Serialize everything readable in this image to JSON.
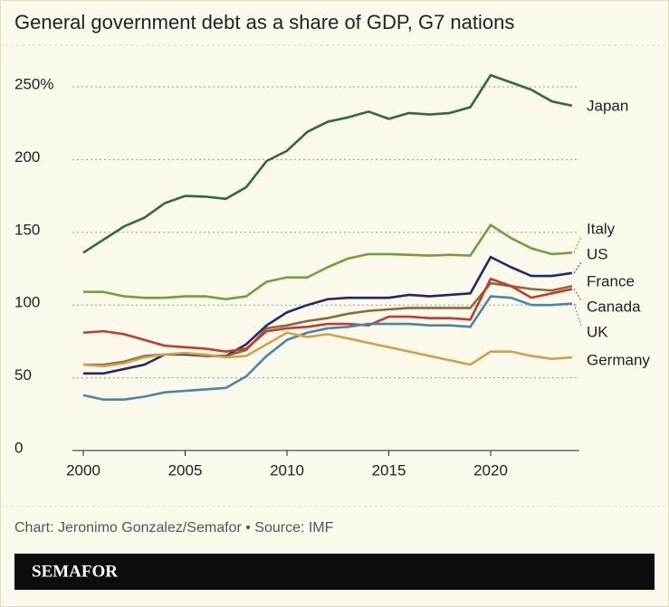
{
  "chart_data": {
    "type": "line",
    "title": "General government debt as a share of GDP, G7 nations",
    "x": [
      2000,
      2001,
      2002,
      2003,
      2004,
      2005,
      2006,
      2007,
      2008,
      2009,
      2010,
      2011,
      2012,
      2013,
      2014,
      2015,
      2016,
      2017,
      2018,
      2019,
      2020,
      2021,
      2022,
      2023,
      2024
    ],
    "xlim": [
      2000,
      2024
    ],
    "xticks": [
      2000,
      2005,
      2010,
      2015,
      2020
    ],
    "ylim": [
      0,
      272
    ],
    "yticks": [
      0,
      50,
      100,
      150,
      200,
      {
        "value": 250,
        "label": "250%"
      }
    ],
    "grid": true,
    "series": [
      {
        "name": "Japan",
        "color": "#2e6b3e",
        "values": [
          136,
          145,
          154,
          160,
          170,
          175,
          174.5,
          173,
          181,
          199,
          206,
          219,
          226,
          229,
          233,
          228,
          232,
          231,
          232,
          236,
          258,
          253,
          248,
          240,
          237
        ]
      },
      {
        "name": "Italy",
        "color": "#6fa23a",
        "values": [
          109,
          109,
          106,
          105,
          105,
          106,
          106,
          104,
          106,
          116,
          119,
          119,
          126,
          132,
          135,
          135,
          134.5,
          134,
          134.5,
          134,
          155,
          146,
          139,
          135,
          136
        ]
      },
      {
        "name": "US",
        "color": "#1f2a6b",
        "values": [
          53,
          53,
          56,
          59,
          66,
          66,
          65,
          65,
          73,
          86,
          95,
          100,
          104,
          105,
          105,
          105,
          107,
          106,
          107,
          108,
          133,
          126,
          120,
          120,
          122
        ]
      },
      {
        "name": "France",
        "color": "#8a6a3a",
        "values": [
          59,
          59,
          61,
          65,
          66,
          67,
          65,
          65,
          69,
          84,
          86,
          89,
          91,
          94,
          96,
          97,
          98,
          98,
          98,
          98,
          115,
          113,
          111,
          110,
          113
        ]
      },
      {
        "name": "Canada",
        "color": "#c43b2a",
        "values": [
          81,
          82,
          80,
          76,
          72,
          71,
          70,
          68,
          70,
          82,
          84,
          85,
          87,
          87,
          86,
          92,
          92,
          91,
          91,
          90,
          118,
          113,
          105,
          108,
          111
        ]
      },
      {
        "name": "UK",
        "color": "#4a86a8",
        "values": [
          38,
          35,
          35,
          37,
          40,
          41,
          42,
          43,
          51,
          65,
          76,
          81,
          84,
          85,
          87,
          87,
          87,
          86,
          86,
          85,
          106,
          105,
          100,
          100,
          101
        ]
      },
      {
        "name": "Germany",
        "color": "#d4a04a",
        "values": [
          59,
          58,
          60,
          64,
          66,
          67,
          66,
          64,
          65,
          73,
          81,
          78,
          80,
          77,
          74,
          71,
          68,
          65,
          62,
          59,
          68,
          68,
          65,
          63,
          64
        ]
      }
    ]
  },
  "footer": {
    "source": "Chart: Jeronimo Gonzalez/Semafor • Source: IMF",
    "brand": "SEMAFOR"
  }
}
